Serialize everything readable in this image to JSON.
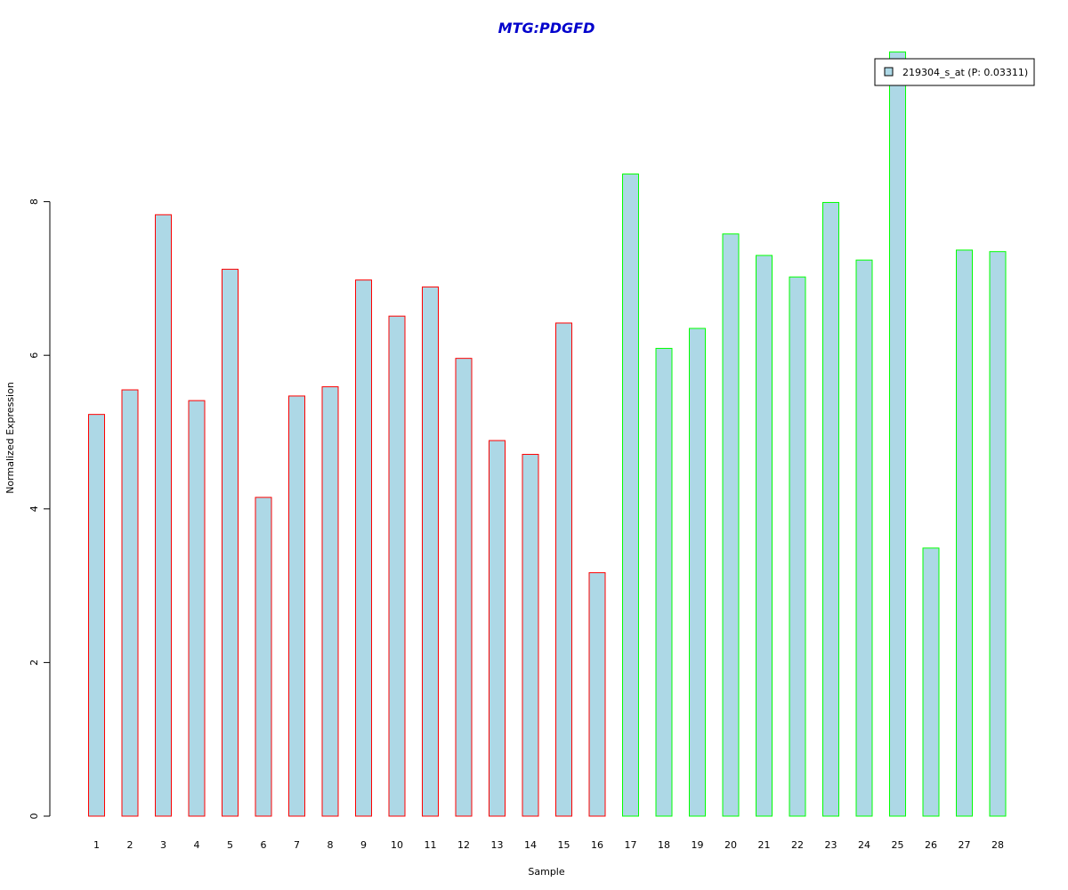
{
  "chart_data": {
    "type": "bar",
    "title": "MTG:PDGFD",
    "xlabel": "Sample",
    "ylabel": "Normalized Expression",
    "categories": [
      "1",
      "2",
      "3",
      "4",
      "5",
      "6",
      "7",
      "8",
      "9",
      "10",
      "11",
      "12",
      "13",
      "14",
      "15",
      "16",
      "17",
      "18",
      "19",
      "20",
      "21",
      "22",
      "23",
      "24",
      "25",
      "26",
      "27",
      "28"
    ],
    "values": [
      5.23,
      5.55,
      7.83,
      5.41,
      7.12,
      4.15,
      5.47,
      5.59,
      6.98,
      6.51,
      6.89,
      5.96,
      4.89,
      4.71,
      6.42,
      3.17,
      8.36,
      6.09,
      6.35,
      7.58,
      7.3,
      7.02,
      7.99,
      7.24,
      9.95,
      3.49,
      7.37,
      7.35
    ],
    "ylim": [
      0,
      10
    ],
    "yticks": [
      0,
      2,
      4,
      6,
      8
    ],
    "group_boundary_index": 16,
    "legend": {
      "label": "219304_s_at (P: 0.03311)",
      "placement": "top-right"
    },
    "grid": false
  },
  "colors": {
    "bar_fill": "#add8e6",
    "group1_border": "#ff0000",
    "group2_border": "#00ff00",
    "title": "#0000cc",
    "axis": "#000000"
  }
}
